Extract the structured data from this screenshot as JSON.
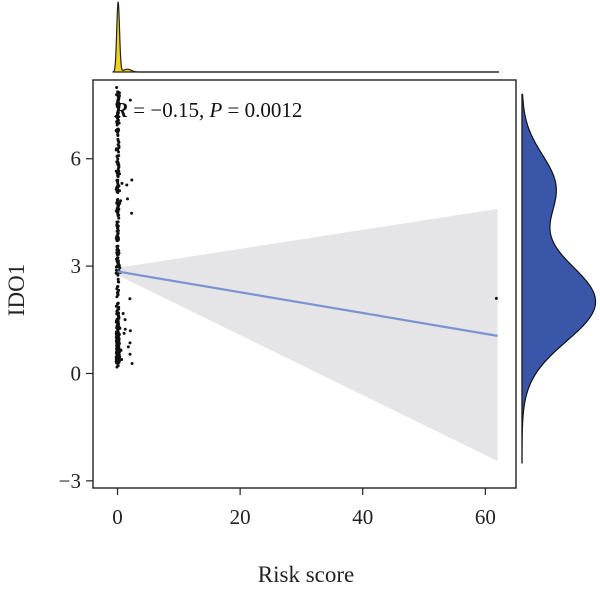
{
  "chart_data": {
    "type": "scatter",
    "title": "",
    "xlabel": "Risk score",
    "ylabel": "IDO1",
    "xlim": [
      -4,
      65
    ],
    "ylim": [
      -3.2,
      8.2
    ],
    "xticks": [
      0,
      20,
      40,
      60
    ],
    "yticks": [
      -3,
      0,
      3,
      6
    ],
    "xtick_labels": [
      "0",
      "20",
      "40",
      "60"
    ],
    "ytick_labels": [
      "−3",
      "0",
      "3",
      "6"
    ],
    "grid": false,
    "annotation": {
      "r_label": "R",
      "r_value": " = −0.15, ",
      "p_label": "P",
      "p_value": " = 0.0012"
    },
    "regression": {
      "x": [
        0,
        62
      ],
      "y": [
        2.85,
        1.05
      ],
      "ci_at_x0": [
        2.75,
        2.95
      ],
      "ci_at_x62": [
        -2.45,
        4.6
      ],
      "line_color": "#7b93d1",
      "band_color": "#e5e5e8"
    },
    "scatter": {
      "cluster_x_range": [
        -0.6,
        3.2
      ],
      "cluster_y_range": [
        0.15,
        8.0
      ],
      "outlier": {
        "x": 61.8,
        "y": 2.1
      },
      "point_color": "#111111"
    },
    "marginal_x_density": {
      "color": "#f2d21b",
      "peak_x": 0.1,
      "range": [
        -0.8,
        3.5
      ]
    },
    "marginal_y_density": {
      "color": "#3a56a8",
      "peak_y": 2.0,
      "range": [
        -2.5,
        7.8
      ]
    }
  }
}
